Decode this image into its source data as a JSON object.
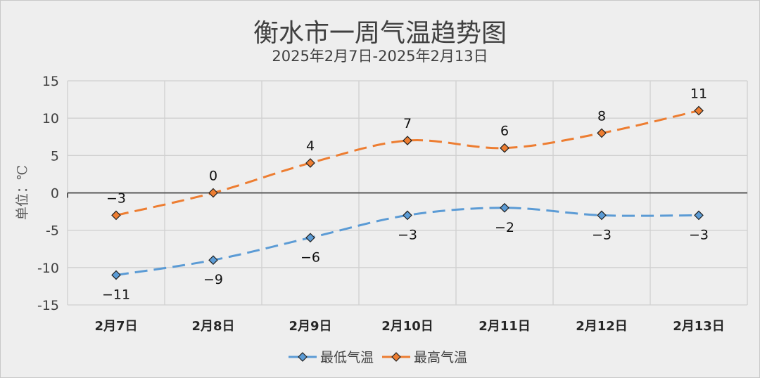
{
  "chart_data": {
    "type": "line",
    "title": "衡水市一周气温趋势图",
    "subtitle": "2025年2月7日-2025年2月13日",
    "ylabel": "单位：℃",
    "xlabel": "",
    "categories": [
      "2月7日",
      "2月8日",
      "2月9日",
      "2月10日",
      "2月11日",
      "2月12日",
      "2月13日"
    ],
    "ylim": [
      -15,
      15
    ],
    "yticks": [
      15,
      10,
      5,
      0,
      -5,
      -10,
      -15
    ],
    "grid": true,
    "legend_position": "bottom",
    "series": [
      {
        "name": "最低气温",
        "color": "#5b9bd5",
        "values": [
          -11,
          -9,
          -6,
          -3,
          -2,
          -3,
          -3
        ],
        "labels_position": "below"
      },
      {
        "name": "最高气温",
        "color": "#ed7d31",
        "values": [
          -3,
          0,
          4,
          7,
          6,
          8,
          11
        ],
        "labels_position": "above"
      }
    ],
    "line_style": "dashed-smooth",
    "marker": "diamond"
  }
}
